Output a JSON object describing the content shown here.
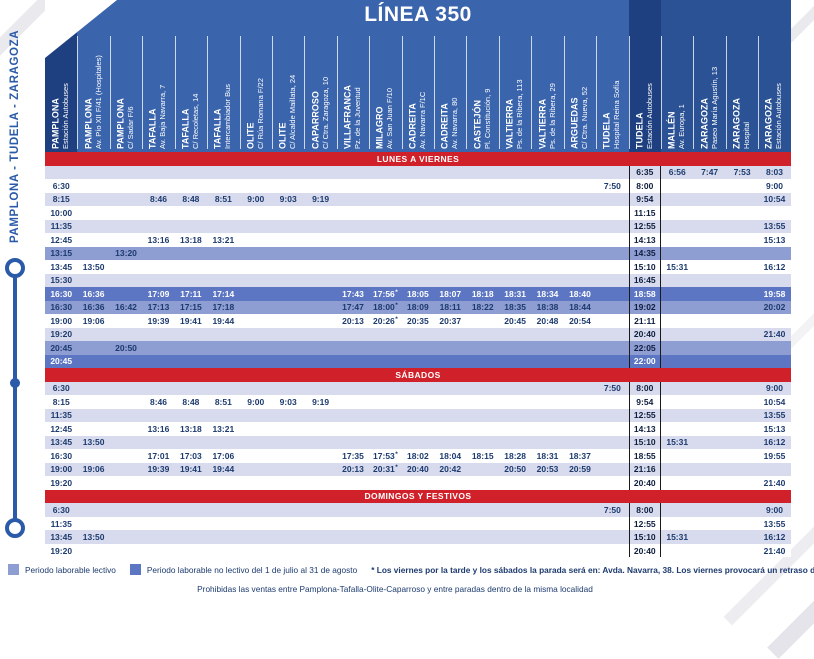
{
  "title": "LÍNEA 350",
  "route_label": "PAMPLONA - TUDELA - ZARAGOZA",
  "colors": {
    "header_blue": "#3A64AC",
    "dark_col": "#1E4080",
    "right_col": "#2B5294",
    "banner_red": "#D0202A",
    "row_alt": "#D7DBED",
    "row_lectivo": "#8E9DD2",
    "row_verano": "#5C76C3",
    "text_navy": "#1C3A6E",
    "accent_blue": "#2B5AA8"
  },
  "columns": [
    {
      "city": "PAMPLONA",
      "stop": "Estación Autobuses",
      "variant": "dark"
    },
    {
      "city": "PAMPLONA",
      "stop": "Av. Pío XII F/41 (Hospitales)",
      "variant": ""
    },
    {
      "city": "PAMPLONA",
      "stop": "C/ Sadar F/6",
      "variant": ""
    },
    {
      "city": "TAFALLA",
      "stop": "Av. Baja Navarra, 7",
      "variant": ""
    },
    {
      "city": "TAFALLA",
      "stop": "C/ Recoletas, 14",
      "variant": ""
    },
    {
      "city": "TAFALLA",
      "stop": "Intercambiador Bus",
      "variant": ""
    },
    {
      "city": "OLITE",
      "stop": "C/ Rúa Romana F/22",
      "variant": ""
    },
    {
      "city": "OLITE",
      "stop": "C/ Alcalde Maillata, 24",
      "variant": ""
    },
    {
      "city": "CAPARROSO",
      "stop": "C/ Ctra. Zaragoza, 10",
      "variant": ""
    },
    {
      "city": "VILLAFRANCA",
      "stop": "Pz. de la Juventud",
      "variant": ""
    },
    {
      "city": "MILAGRO",
      "stop": "Av. San Juan F/10",
      "variant": ""
    },
    {
      "city": "CADREITA",
      "stop": "Av. Navarra F/1C",
      "variant": ""
    },
    {
      "city": "CADREITA",
      "stop": "Av. Navarra, 80",
      "variant": ""
    },
    {
      "city": "CASTEJÓN",
      "stop": "Pl. Constitución, 9",
      "variant": ""
    },
    {
      "city": "VALTIERRA",
      "stop": "Ps. de la Ribera, 113",
      "variant": ""
    },
    {
      "city": "VALTIERRA",
      "stop": "Ps. de la Ribera, 29",
      "variant": ""
    },
    {
      "city": "ARGUEDAS",
      "stop": "C/ Ctra. Nueva, 52",
      "variant": ""
    },
    {
      "city": "TUDELA",
      "stop": "Hospital Reina Sofía",
      "variant": ""
    },
    {
      "city": "TUDELA",
      "stop": "Estación Autobuses",
      "variant": "dark"
    },
    {
      "city": "MALLÉN",
      "stop": "Av. Europa, 1",
      "variant": "rdark"
    },
    {
      "city": "ZARAGOZA",
      "stop": "Paseo María Agustín, 13",
      "variant": "rdark"
    },
    {
      "city": "ZARAGOZA",
      "stop": "Hospital",
      "variant": "rdark"
    },
    {
      "city": "ZARAGOZA",
      "stop": "Estación Autobuses",
      "variant": "rdark"
    }
  ],
  "sections": [
    {
      "label": "LUNES A VIERNES",
      "rows": [
        {
          "shade": "alt",
          "times": [
            "",
            "",
            "",
            "",
            "",
            "",
            "",
            "",
            "",
            "",
            "",
            "",
            "",
            "",
            "",
            "",
            "",
            "",
            "6:35",
            "6:56",
            "7:47",
            "7:53",
            "8:03"
          ]
        },
        {
          "shade": "plain",
          "times": [
            "6:30",
            "",
            "",
            "",
            "",
            "",
            "",
            "",
            "",
            "",
            "",
            "",
            "",
            "",
            "",
            "",
            "",
            "7:50",
            "8:00",
            "",
            "",
            "",
            "9:00"
          ]
        },
        {
          "shade": "alt",
          "times": [
            "8:15",
            "",
            "",
            "8:46",
            "8:48",
            "8:51",
            "9:00",
            "9:03",
            "9:19",
            "",
            "",
            "",
            "",
            "",
            "",
            "",
            "",
            "",
            "9:54",
            "",
            "",
            "",
            "10:54"
          ]
        },
        {
          "shade": "plain",
          "times": [
            "10:00",
            "",
            "",
            "",
            "",
            "",
            "",
            "",
            "",
            "",
            "",
            "",
            "",
            "",
            "",
            "",
            "",
            "",
            "11:15",
            "",
            "",
            "",
            ""
          ]
        },
        {
          "shade": "alt",
          "times": [
            "11:35",
            "",
            "",
            "",
            "",
            "",
            "",
            "",
            "",
            "",
            "",
            "",
            "",
            "",
            "",
            "",
            "",
            "",
            "12:55",
            "",
            "",
            "",
            "13:55"
          ]
        },
        {
          "shade": "plain",
          "times": [
            "12:45",
            "",
            "",
            "13:16",
            "13:18",
            "13:21",
            "",
            "",
            "",
            "",
            "",
            "",
            "",
            "",
            "",
            "",
            "",
            "",
            "14:13",
            "",
            "",
            "",
            "15:13"
          ]
        },
        {
          "shade": "lectivo",
          "times": [
            "13:15",
            "",
            "13:20",
            "",
            "",
            "",
            "",
            "",
            "",
            "",
            "",
            "",
            "",
            "",
            "",
            "",
            "",
            "",
            "14:35",
            "",
            "",
            "",
            ""
          ]
        },
        {
          "shade": "plain",
          "times": [
            "13:45",
            "13:50",
            "",
            "",
            "",
            "",
            "",
            "",
            "",
            "",
            "",
            "",
            "",
            "",
            "",
            "",
            "",
            "",
            "15:10",
            "15:31",
            "",
            "",
            "16:12"
          ]
        },
        {
          "shade": "alt",
          "times": [
            "15:30",
            "",
            "",
            "",
            "",
            "",
            "",
            "",
            "",
            "",
            "",
            "",
            "",
            "",
            "",
            "",
            "",
            "",
            "16:45",
            "",
            "",
            "",
            ""
          ]
        },
        {
          "shade": "verano",
          "times": [
            "16:30",
            "16:36",
            "",
            "17:09",
            "17:11",
            "17:14",
            "",
            "",
            "",
            "17:43",
            "17:56*",
            "18:05",
            "18:07",
            "18:18",
            "18:31",
            "18:34",
            "18:40",
            "",
            "18:58",
            "",
            "",
            "",
            "19:58"
          ]
        },
        {
          "shade": "lectivo",
          "times": [
            "16:30",
            "16:36",
            "16:42",
            "17:13",
            "17:15",
            "17:18",
            "",
            "",
            "",
            "17:47",
            "18:00*",
            "18:09",
            "18:11",
            "18:22",
            "18:35",
            "18:38",
            "18:44",
            "",
            "19:02",
            "",
            "",
            "",
            "20:02"
          ]
        },
        {
          "shade": "plain",
          "times": [
            "19:00",
            "19:06",
            "",
            "19:39",
            "19:41",
            "19:44",
            "",
            "",
            "",
            "20:13",
            "20:26*",
            "20:35",
            "20:37",
            "",
            "20:45",
            "20:48",
            "20:54",
            "",
            "21:11",
            "",
            "",
            "",
            ""
          ]
        },
        {
          "shade": "alt",
          "times": [
            "19:20",
            "",
            "",
            "",
            "",
            "",
            "",
            "",
            "",
            "",
            "",
            "",
            "",
            "",
            "",
            "",
            "",
            "",
            "20:40",
            "",
            "",
            "",
            "21:40"
          ]
        },
        {
          "shade": "lectivo",
          "times": [
            "20:45",
            "",
            "20:50",
            "",
            "",
            "",
            "",
            "",
            "",
            "",
            "",
            "",
            "",
            "",
            "",
            "",
            "",
            "",
            "22:05",
            "",
            "",
            "",
            ""
          ]
        },
        {
          "shade": "verano",
          "times": [
            "20:45",
            "",
            "",
            "",
            "",
            "",
            "",
            "",
            "",
            "",
            "",
            "",
            "",
            "",
            "",
            "",
            "",
            "",
            "22:00",
            "",
            "",
            "",
            ""
          ]
        }
      ]
    },
    {
      "label": "SÁBADOS",
      "rows": [
        {
          "shade": "alt",
          "times": [
            "6:30",
            "",
            "",
            "",
            "",
            "",
            "",
            "",
            "",
            "",
            "",
            "",
            "",
            "",
            "",
            "",
            "",
            "7:50",
            "8:00",
            "",
            "",
            "",
            "9:00"
          ]
        },
        {
          "shade": "plain",
          "times": [
            "8:15",
            "",
            "",
            "8:46",
            "8:48",
            "8:51",
            "9:00",
            "9:03",
            "9:19",
            "",
            "",
            "",
            "",
            "",
            "",
            "",
            "",
            "",
            "9:54",
            "",
            "",
            "",
            "10:54"
          ]
        },
        {
          "shade": "alt",
          "times": [
            "11:35",
            "",
            "",
            "",
            "",
            "",
            "",
            "",
            "",
            "",
            "",
            "",
            "",
            "",
            "",
            "",
            "",
            "",
            "12:55",
            "",
            "",
            "",
            "13:55"
          ]
        },
        {
          "shade": "plain",
          "times": [
            "12:45",
            "",
            "",
            "13:16",
            "13:18",
            "13:21",
            "",
            "",
            "",
            "",
            "",
            "",
            "",
            "",
            "",
            "",
            "",
            "",
            "14:13",
            "",
            "",
            "",
            "15:13"
          ]
        },
        {
          "shade": "alt",
          "times": [
            "13:45",
            "13:50",
            "",
            "",
            "",
            "",
            "",
            "",
            "",
            "",
            "",
            "",
            "",
            "",
            "",
            "",
            "",
            "",
            "15:10",
            "15:31",
            "",
            "",
            "16:12"
          ]
        },
        {
          "shade": "plain",
          "times": [
            "16:30",
            "",
            "",
            "17:01",
            "17:03",
            "17:06",
            "",
            "",
            "",
            "17:35",
            "17:53*",
            "18:02",
            "18:04",
            "18:15",
            "18:28",
            "18:31",
            "18:37",
            "",
            "18:55",
            "",
            "",
            "",
            "19:55"
          ]
        },
        {
          "shade": "alt",
          "times": [
            "19:00",
            "19:06",
            "",
            "19:39",
            "19:41",
            "19:44",
            "",
            "",
            "",
            "20:13",
            "20:31*",
            "20:40",
            "20:42",
            "",
            "20:50",
            "20:53",
            "20:59",
            "",
            "21:16",
            "",
            "",
            "",
            ""
          ]
        },
        {
          "shade": "plain",
          "times": [
            "19:20",
            "",
            "",
            "",
            "",
            "",
            "",
            "",
            "",
            "",
            "",
            "",
            "",
            "",
            "",
            "",
            "",
            "",
            "20:40",
            "",
            "",
            "",
            "21:40"
          ]
        }
      ]
    },
    {
      "label": "DOMINGOS Y FESTIVOS",
      "rows": [
        {
          "shade": "alt",
          "times": [
            "6:30",
            "",
            "",
            "",
            "",
            "",
            "",
            "",
            "",
            "",
            "",
            "",
            "",
            "",
            "",
            "",
            "",
            "7:50",
            "8:00",
            "",
            "",
            "",
            "9:00"
          ]
        },
        {
          "shade": "plain",
          "times": [
            "11:35",
            "",
            "",
            "",
            "",
            "",
            "",
            "",
            "",
            "",
            "",
            "",
            "",
            "",
            "",
            "",
            "",
            "",
            "12:55",
            "",
            "",
            "",
            "13:55"
          ]
        },
        {
          "shade": "alt",
          "times": [
            "13:45",
            "13:50",
            "",
            "",
            "",
            "",
            "",
            "",
            "",
            "",
            "",
            "",
            "",
            "",
            "",
            "",
            "",
            "",
            "15:10",
            "15:31",
            "",
            "",
            "16:12"
          ]
        },
        {
          "shade": "plain",
          "times": [
            "19:20",
            "",
            "",
            "",
            "",
            "",
            "",
            "",
            "",
            "",
            "",
            "",
            "",
            "",
            "",
            "",
            "",
            "",
            "20:40",
            "",
            "",
            "",
            "21:40"
          ]
        }
      ]
    }
  ],
  "legend": {
    "items": [
      {
        "label": "Periodo laborable lectivo",
        "color": "#8E9DD2"
      },
      {
        "label": "Periodo laborable no lectivo del 1 de julio al 31 de agosto",
        "color": "#5C76C3"
      }
    ],
    "note": "* Los viernes por la tarde y los sábados la parada será en: Avda. Navarra, 38. Los viernes provocará un retraso de 5 min. a partir de Milagro.",
    "footer": "Prohibidas las ventas entre Pamplona-Tafalla-Olite-Caparroso y entre paradas dentro de la misma localidad"
  }
}
